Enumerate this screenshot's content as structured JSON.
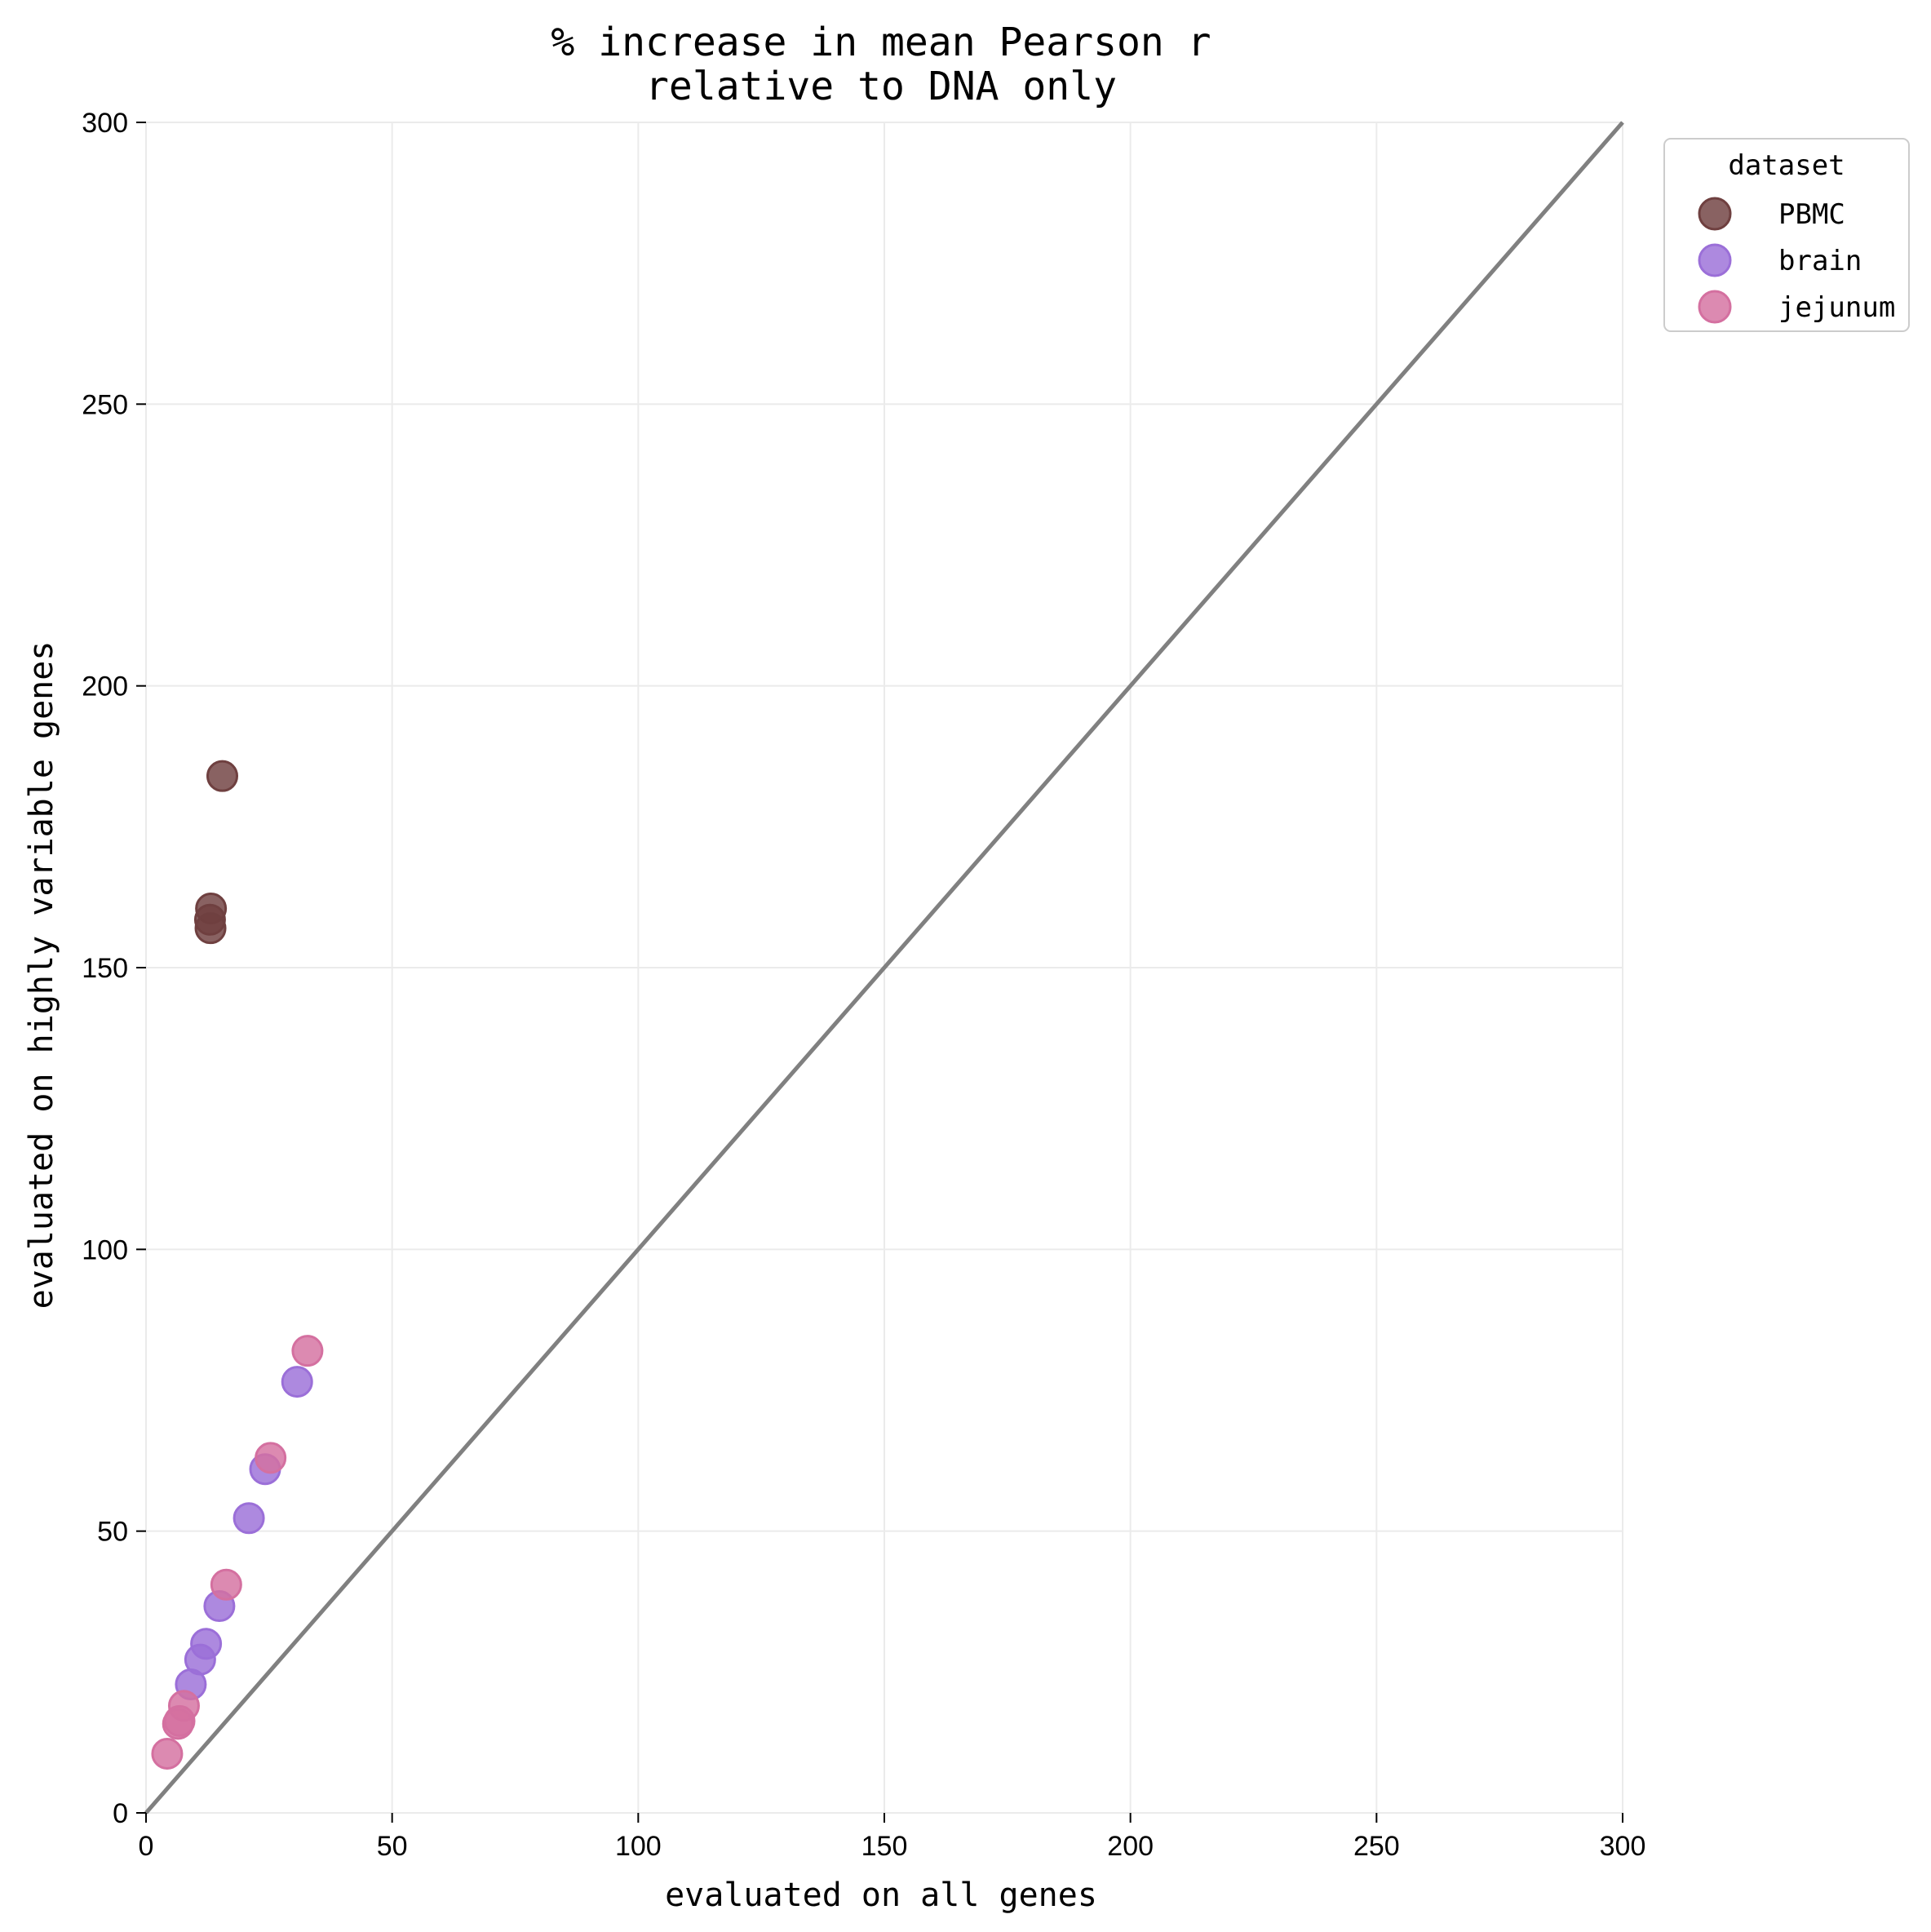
{
  "chart_data": {
    "type": "scatter",
    "title": [
      "% increase in mean Pearson r",
      "relative to DNA only"
    ],
    "xlabel": "evaluated on all genes",
    "ylabel": "evaluated on highly variable genes",
    "xlim": [
      0,
      300
    ],
    "ylim": [
      0,
      300
    ],
    "xticks": [
      0,
      50,
      100,
      150,
      200,
      250,
      300
    ],
    "yticks": [
      0,
      50,
      100,
      150,
      200,
      250,
      300
    ],
    "grid": true,
    "reference_line": {
      "from": [
        0,
        0
      ],
      "to": [
        300,
        300
      ],
      "color": "#808080"
    },
    "legend": {
      "title": "dataset",
      "placement": "upper-right-outside"
    },
    "series": [
      {
        "name": "PBMC",
        "color": "#6f4040",
        "points": [
          [
            15.5,
            184
          ],
          [
            13.2,
            160.5
          ],
          [
            13.0,
            158.5
          ],
          [
            13.1,
            157
          ]
        ]
      },
      {
        "name": "brain",
        "color": "#9b6fd8",
        "points": [
          [
            30.7,
            76.5
          ],
          [
            24.2,
            61
          ],
          [
            20.9,
            52.3
          ],
          [
            14.9,
            36.7
          ],
          [
            12.2,
            30
          ],
          [
            11.0,
            27.2
          ],
          [
            9.1,
            22.8
          ]
        ]
      },
      {
        "name": "jejunum",
        "color": "#d470a0",
        "points": [
          [
            32.8,
            82
          ],
          [
            25.3,
            63
          ],
          [
            16.3,
            40.5
          ],
          [
            7.7,
            19
          ],
          [
            6.8,
            16.3
          ],
          [
            6.5,
            15.8
          ],
          [
            4.3,
            10.5
          ]
        ]
      }
    ]
  }
}
